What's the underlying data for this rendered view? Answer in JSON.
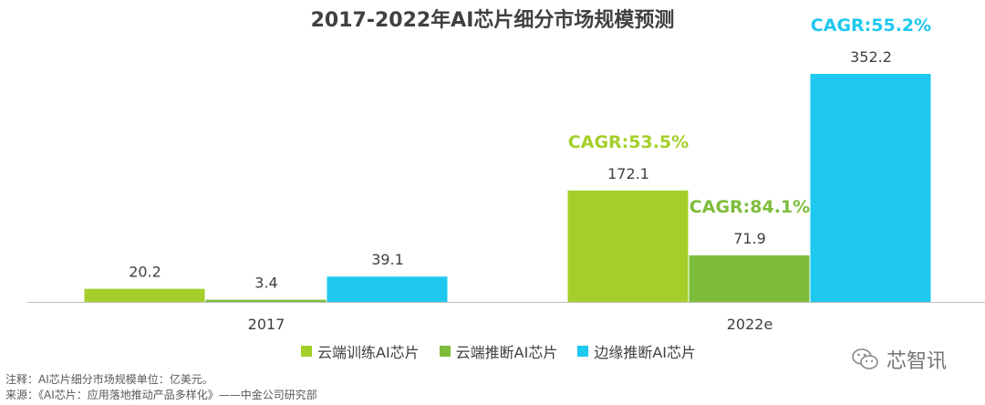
{
  "chart_data": {
    "type": "bar",
    "title": "2017-2022年AI芯片细分市场规模预测",
    "categories": [
      "2017",
      "2022e"
    ],
    "series": [
      {
        "name": "云端训练AI芯片",
        "color": "#a4cf2a",
        "values": [
          20.2,
          172.1
        ],
        "value_labels": [
          "20.2",
          "172.1"
        ],
        "cagr": "CAGR:53.5%"
      },
      {
        "name": "云端推断AI芯片",
        "color": "#7dbd3b",
        "values": [
          3.4,
          71.9
        ],
        "value_labels": [
          "3.4",
          "71.9"
        ],
        "cagr": "CAGR:84.1%"
      },
      {
        "name": "边缘推断AI芯片",
        "color": "#1ec8ef",
        "values": [
          39.1,
          352.2
        ],
        "value_labels": [
          "39.1",
          "352.2"
        ],
        "cagr": "CAGR:55.2%"
      }
    ],
    "ylim": [
      0,
      352.2
    ],
    "grid": false,
    "legend_position": "bottom"
  },
  "notes": {
    "note": "注释：AI芯片细分市场规模单位：亿美元。",
    "source": "来源：《AI芯片：应用落地推动产品多样化》——中金公司研究部"
  },
  "watermark": {
    "text": "芯智讯",
    "icon": "wechat-icon"
  }
}
